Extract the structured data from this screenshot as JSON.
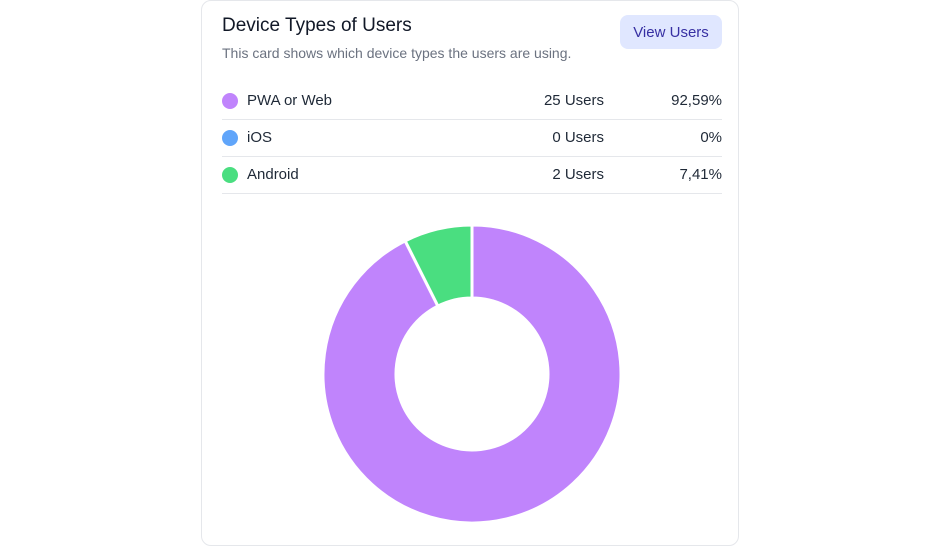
{
  "card": {
    "title": "Device Types of Users",
    "subtitle": "This card shows which device types the users are using.",
    "view_button_label": "View Users"
  },
  "legend": [
    {
      "label": "PWA or Web",
      "count": "25 Users",
      "percent": "92,59%",
      "color": "#c084fc"
    },
    {
      "label": "iOS",
      "count": "0 Users",
      "percent": "0%",
      "color": "#60a5fa"
    },
    {
      "label": "Android",
      "count": "2 Users",
      "percent": "7,41%",
      "color": "#4ade80"
    }
  ],
  "chart_data": {
    "type": "pie",
    "variant": "donut",
    "categories": [
      "PWA or Web",
      "iOS",
      "Android"
    ],
    "values": [
      25,
      0,
      2
    ],
    "colors": [
      "#c084fc",
      "#60a5fa",
      "#4ade80"
    ],
    "title": "",
    "legend_placement": "top"
  }
}
